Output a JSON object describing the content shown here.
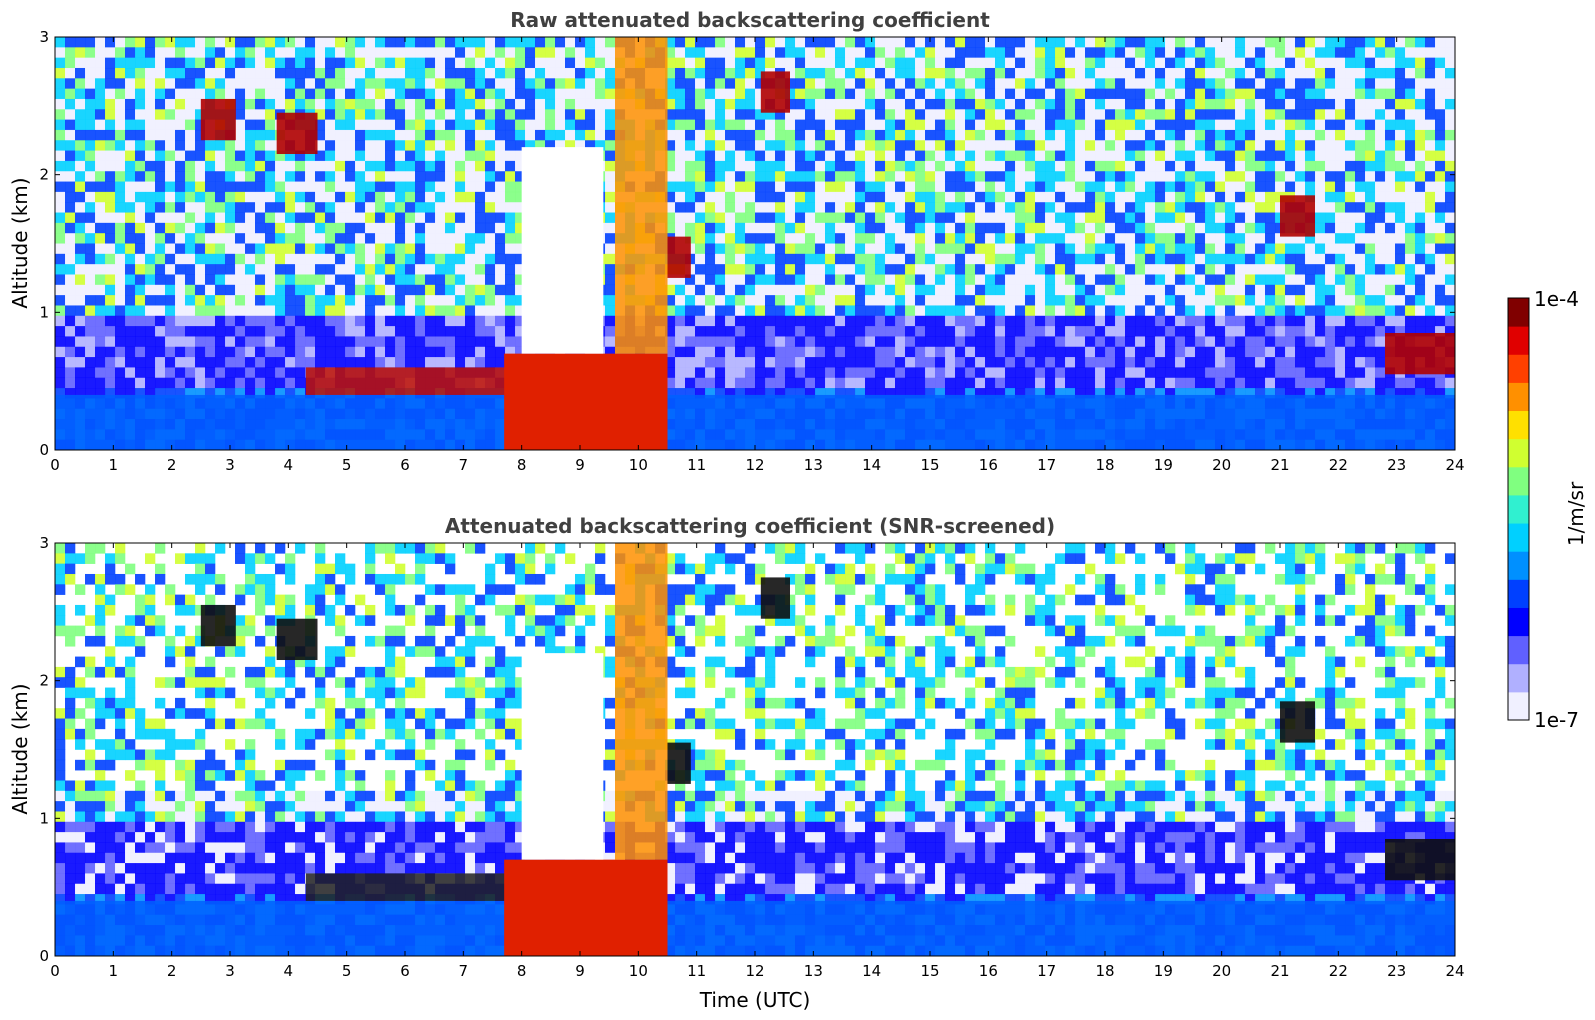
{
  "chart_data": [
    {
      "type": "heatmap",
      "title": "Raw attenuated backscattering coefficient",
      "xlabel": "",
      "ylabel": "Altitude (km)",
      "xlim": [
        0,
        24
      ],
      "ylim": [
        0,
        3
      ],
      "xticks": [
        "0",
        "1",
        "2",
        "3",
        "4",
        "5",
        "6",
        "7",
        "8",
        "9",
        "10",
        "11",
        "12",
        "13",
        "14",
        "15",
        "16",
        "17",
        "18",
        "19",
        "20",
        "21",
        "22",
        "23",
        "24"
      ],
      "yticks": [
        "0",
        "1",
        "2",
        "3"
      ],
      "features": [
        {
          "kind": "boundary_layer",
          "t_start": 0,
          "t_end": 24,
          "alt_top": 0.4
        },
        {
          "kind": "aerosol_layer",
          "t_start": 4.3,
          "t_end": 7.8,
          "alt": 0.5
        },
        {
          "kind": "dense_plume",
          "t_start": 7.7,
          "t_end": 10.5,
          "alt_top": 0.7
        },
        {
          "kind": "cloud",
          "t_start": 2.5,
          "t_end": 3.1,
          "alt": 2.4
        },
        {
          "kind": "cloud",
          "t_start": 3.8,
          "t_end": 4.5,
          "alt": 2.3
        },
        {
          "kind": "cloud",
          "t_start": 12.1,
          "t_end": 12.6,
          "alt": 2.6
        },
        {
          "kind": "cloud",
          "t_start": 21.0,
          "t_end": 21.6,
          "alt": 1.7
        },
        {
          "kind": "cloud",
          "t_start": 10.5,
          "t_end": 10.9,
          "alt": 1.4
        },
        {
          "kind": "cloud",
          "t_start": 22.8,
          "t_end": 24,
          "alt": 0.7
        }
      ]
    },
    {
      "type": "heatmap",
      "title": "Attenuated backscattering coefficient (SNR-screened)",
      "xlabel": "Time (UTC)",
      "ylabel": "Altitude (km)",
      "xlim": [
        0,
        24
      ],
      "ylim": [
        0,
        3
      ],
      "xticks": [
        "0",
        "1",
        "2",
        "3",
        "4",
        "5",
        "6",
        "7",
        "8",
        "9",
        "10",
        "11",
        "12",
        "13",
        "14",
        "15",
        "16",
        "17",
        "18",
        "19",
        "20",
        "21",
        "22",
        "23",
        "24"
      ],
      "yticks": [
        "0",
        "1",
        "2",
        "3"
      ],
      "features": [
        {
          "kind": "boundary_layer",
          "t_start": 0,
          "t_end": 24,
          "alt_top": 0.4
        },
        {
          "kind": "aerosol_layer",
          "t_start": 4.3,
          "t_end": 7.8,
          "alt": 0.5
        },
        {
          "kind": "dense_plume",
          "t_start": 7.7,
          "t_end": 10.5,
          "alt_top": 0.7
        },
        {
          "kind": "cloud",
          "t_start": 2.5,
          "t_end": 3.1,
          "alt": 2.4
        },
        {
          "kind": "cloud",
          "t_start": 3.8,
          "t_end": 4.5,
          "alt": 2.3
        },
        {
          "kind": "cloud",
          "t_start": 12.1,
          "t_end": 12.6,
          "alt": 2.6
        },
        {
          "kind": "cloud",
          "t_start": 21.0,
          "t_end": 21.6,
          "alt": 1.7
        },
        {
          "kind": "cloud",
          "t_start": 10.5,
          "t_end": 10.9,
          "alt": 1.4
        },
        {
          "kind": "cloud",
          "t_start": 22.8,
          "t_end": 24,
          "alt": 0.7
        }
      ]
    }
  ],
  "colorbar": {
    "label": "1/m/sr",
    "max_label": "1e-4",
    "min_label": "1e-7",
    "colors": [
      "#f0f0ff",
      "#b0b0ff",
      "#6060ff",
      "#0000ff",
      "#0040ff",
      "#0090ff",
      "#00d0ff",
      "#30f0d0",
      "#80ff80",
      "#d0ff30",
      "#ffe000",
      "#ff9000",
      "#ff4000",
      "#e00000",
      "#800000"
    ]
  }
}
